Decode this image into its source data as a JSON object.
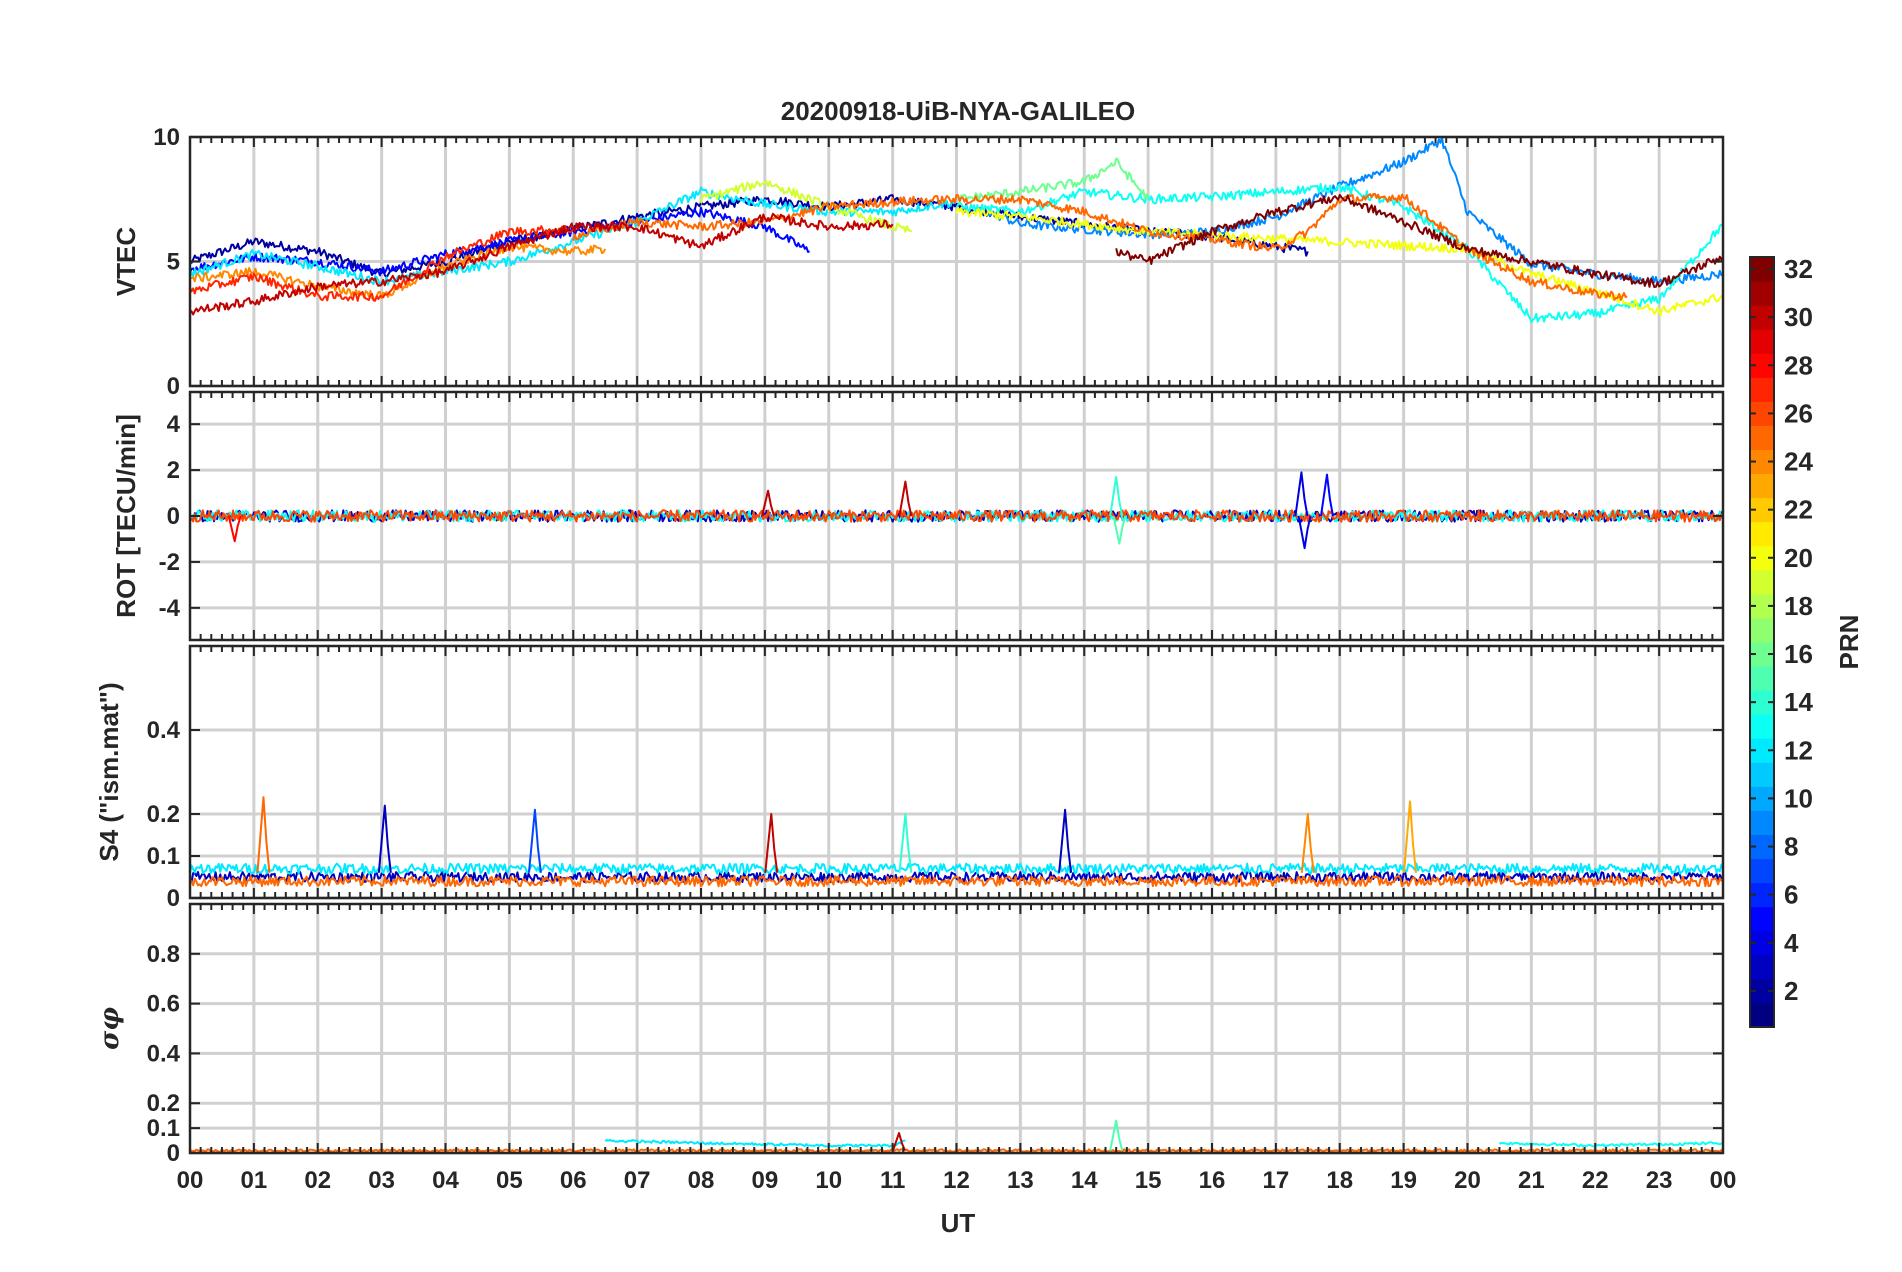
{
  "chart_data": {
    "type": "line",
    "title": "20200918-UiB-NYA-GALILEO",
    "xlabel": "UT",
    "x_tick_labels": [
      "00",
      "01",
      "02",
      "03",
      "04",
      "05",
      "06",
      "07",
      "08",
      "09",
      "10",
      "11",
      "12",
      "13",
      "14",
      "15",
      "16",
      "17",
      "18",
      "19",
      "20",
      "21",
      "22",
      "23",
      "00"
    ],
    "xlim": [
      0,
      24
    ],
    "colorbar": {
      "label": "PRN",
      "range": [
        1,
        32
      ],
      "tick_labels": [
        "2",
        "4",
        "6",
        "8",
        "10",
        "12",
        "14",
        "16",
        "18",
        "20",
        "22",
        "24",
        "26",
        "28",
        "30",
        "32"
      ],
      "tick_values": [
        2,
        4,
        6,
        8,
        10,
        12,
        14,
        16,
        18,
        20,
        22,
        24,
        26,
        28,
        30,
        32
      ],
      "colormap": "jet"
    },
    "panels": [
      {
        "name": "VTEC",
        "ylabel": "VTEC",
        "ylim": [
          0,
          10
        ],
        "ytick_labels": [
          "0",
          "5",
          "10"
        ],
        "ytick_values": [
          0,
          5,
          10
        ],
        "series": [
          {
            "prn": 2,
            "x": [
              0,
              1,
              2,
              3,
              4,
              5,
              6,
              7,
              8,
              9,
              10,
              11,
              12,
              13,
              14,
              15,
              16,
              17,
              17.5
            ],
            "values": [
              5,
              5.8,
              5.4,
              4.5,
              5,
              5.8,
              6.3,
              6.8,
              7.2,
              7.5,
              7.2,
              7.5,
              7.2,
              6.8,
              6.5,
              6.2,
              6,
              5.6,
              5.4
            ]
          },
          {
            "prn": 5,
            "x": [
              0,
              1,
              2,
              3,
              4,
              5,
              6,
              7,
              8,
              9,
              9.7
            ],
            "values": [
              4.7,
              5.2,
              5,
              4.6,
              5.3,
              5.8,
              6.2,
              6.6,
              7,
              6.4,
              5.4
            ]
          },
          {
            "prn": 9,
            "x": [
              12.5,
              13,
              14,
              15,
              16,
              17,
              18,
              19,
              19.6,
              20,
              21,
              22,
              23,
              24
            ],
            "values": [
              7,
              6.5,
              6.3,
              6.1,
              6.2,
              6.8,
              8,
              9,
              9.9,
              7,
              4.9,
              4.5,
              4.2,
              4.5
            ]
          },
          {
            "prn": 12,
            "x": [
              0,
              1,
              2,
              3,
              4,
              5,
              6,
              7,
              8,
              9,
              10,
              11,
              12
            ],
            "values": [
              4.5,
              5.3,
              4.8,
              4.2,
              4.6,
              5,
              5.8,
              6.6,
              7.8,
              7.3,
              7,
              7,
              7.4
            ]
          },
          {
            "prn": 13,
            "x": [
              12,
              13,
              14,
              15,
              16,
              17,
              18,
              19,
              20,
              21,
              22,
              23,
              24
            ],
            "values": [
              7.2,
              7,
              7.8,
              7.5,
              7.6,
              7.8,
              8,
              7.2,
              5.5,
              2.7,
              2.9,
              3.5,
              6.5
            ]
          },
          {
            "prn": 16,
            "x": [
              12,
              13,
              14,
              14.5,
              15
            ],
            "values": [
              7.5,
              7.8,
              8.2,
              9,
              7.5
            ]
          },
          {
            "prn": 19,
            "x": [
              8,
              9,
              10,
              11,
              11.3
            ],
            "values": [
              7.5,
              8.2,
              7.2,
              6.4,
              6.2
            ]
          },
          {
            "prn": 20,
            "x": [
              12,
              13,
              14,
              15,
              20,
              21,
              22,
              23,
              24
            ],
            "values": [
              7,
              6.8,
              6.5,
              6.2,
              5.5,
              4.5,
              3.8,
              3,
              3.6
            ]
          },
          {
            "prn": 24,
            "x": [
              0,
              1,
              2,
              3,
              4,
              5,
              6,
              6.5
            ],
            "values": [
              4.3,
              4.6,
              4,
              3.6,
              4.8,
              5.6,
              5.4,
              5.5
            ]
          },
          {
            "prn": 25,
            "x": [
              6,
              7,
              8,
              9,
              10,
              11,
              12,
              13,
              14,
              15,
              16,
              17,
              17.5,
              18,
              19,
              20,
              21,
              22,
              22.5
            ],
            "values": [
              6,
              6.6,
              6.4,
              6.6,
              7.2,
              7.4,
              7.5,
              7.5,
              7,
              6.2,
              5.9,
              5.5,
              6.2,
              7.5,
              7.6,
              5.5,
              4.2,
              3.7,
              3.6
            ]
          },
          {
            "prn": 27,
            "x": [
              0,
              1,
              2,
              3,
              4,
              5,
              6
            ],
            "values": [
              3.8,
              4.4,
              3.6,
              3.6,
              5.2,
              6.2,
              6.3
            ]
          },
          {
            "prn": 30,
            "x": [
              0,
              1,
              2,
              3,
              4,
              5,
              6,
              7,
              8,
              9,
              10,
              11
            ],
            "values": [
              3,
              3.4,
              4,
              4.2,
              4.6,
              5.6,
              6.4,
              6.4,
              5.6,
              6.8,
              6.4,
              6.5
            ]
          },
          {
            "prn": 32,
            "x": [
              14.5,
              15,
              16,
              17,
              18,
              19,
              20,
              21,
              22,
              23,
              24
            ],
            "values": [
              5.4,
              5,
              6.2,
              7,
              7.6,
              6.6,
              5.5,
              5,
              4.5,
              4.1,
              5.2
            ]
          }
        ]
      },
      {
        "name": "ROT",
        "ylabel": "ROT [TECU/min]",
        "ylim": [
          -5.4,
          5.4
        ],
        "ytick_labels": [
          "-4",
          "-2",
          "0",
          "2",
          "4"
        ],
        "ytick_values": [
          -4,
          -2,
          0,
          2,
          4
        ],
        "series": [
          {
            "prn": 3,
            "x": [
              0,
              24
            ],
            "values": [
              0,
              0
            ]
          },
          {
            "prn": 13,
            "x": [
              0,
              24
            ],
            "values": [
              0,
              0
            ]
          },
          {
            "prn": 26,
            "x": [
              0,
              24
            ],
            "values": [
              0,
              0
            ]
          }
        ],
        "spikes": [
          {
            "x": 11.2,
            "value": 1.5,
            "prn": 30
          },
          {
            "x": 14.5,
            "value": 1.7,
            "prn": 14
          },
          {
            "x": 14.55,
            "value": -1.2,
            "prn": 15
          },
          {
            "x": 17.4,
            "value": 1.9,
            "prn": 4
          },
          {
            "x": 17.45,
            "value": -1.4,
            "prn": 4
          },
          {
            "x": 17.8,
            "value": 1.8,
            "prn": 5
          },
          {
            "x": 9.05,
            "value": 1.1,
            "prn": 30
          },
          {
            "x": 0.7,
            "value": -1.1,
            "prn": 28
          }
        ]
      },
      {
        "name": "S4",
        "ylabel": "S4 (\"ism.mat\")",
        "ylim": [
          0,
          0.6
        ],
        "ytick_labels": [
          "0",
          "0.1",
          "0.2",
          "0.4"
        ],
        "ytick_values": [
          0,
          0.1,
          0.2,
          0.4
        ],
        "series": [
          {
            "prn": 3,
            "x": [
              0,
              24
            ],
            "values": [
              0.05,
              0.05
            ]
          },
          {
            "prn": 12,
            "x": [
              0,
              24
            ],
            "values": [
              0.07,
              0.07
            ]
          },
          {
            "prn": 25,
            "x": [
              0,
              24
            ],
            "values": [
              0.04,
              0.04
            ]
          }
        ],
        "spikes": [
          {
            "x": 1.15,
            "value": 0.24,
            "prn": 25
          },
          {
            "x": 3.05,
            "value": 0.22,
            "prn": 3
          },
          {
            "x": 5.4,
            "value": 0.21,
            "prn": 7
          },
          {
            "x": 9.1,
            "value": 0.2,
            "prn": 30
          },
          {
            "x": 11.2,
            "value": 0.2,
            "prn": 14
          },
          {
            "x": 13.7,
            "value": 0.21,
            "prn": 3
          },
          {
            "x": 17.5,
            "value": 0.2,
            "prn": 24
          },
          {
            "x": 19.1,
            "value": 0.23,
            "prn": 23
          }
        ]
      },
      {
        "name": "sigma_phi",
        "ylabel": "σφ",
        "ylim": [
          0,
          1
        ],
        "ytick_labels": [
          "0",
          "0.1",
          "0.2",
          "0.4",
          "0.6",
          "0.8"
        ],
        "ytick_values": [
          0,
          0.1,
          0.2,
          0.4,
          0.6,
          0.8
        ],
        "series": [
          {
            "prn": 12,
            "x": [
              6.5,
              8,
              10,
              11,
              11.2
            ],
            "values": [
              0.05,
              0.04,
              0.03,
              0.03,
              0.05
            ]
          },
          {
            "prn": 13,
            "x": [
              20.5,
              22,
              24
            ],
            "values": [
              0.04,
              0.03,
              0.04
            ]
          },
          {
            "prn": 25,
            "x": [
              0,
              24
            ],
            "values": [
              0.01,
              0.01
            ]
          }
        ],
        "spikes": [
          {
            "x": 14.5,
            "value": 0.13,
            "prn": 15
          },
          {
            "x": 11.1,
            "value": 0.08,
            "prn": 30
          }
        ]
      }
    ]
  }
}
